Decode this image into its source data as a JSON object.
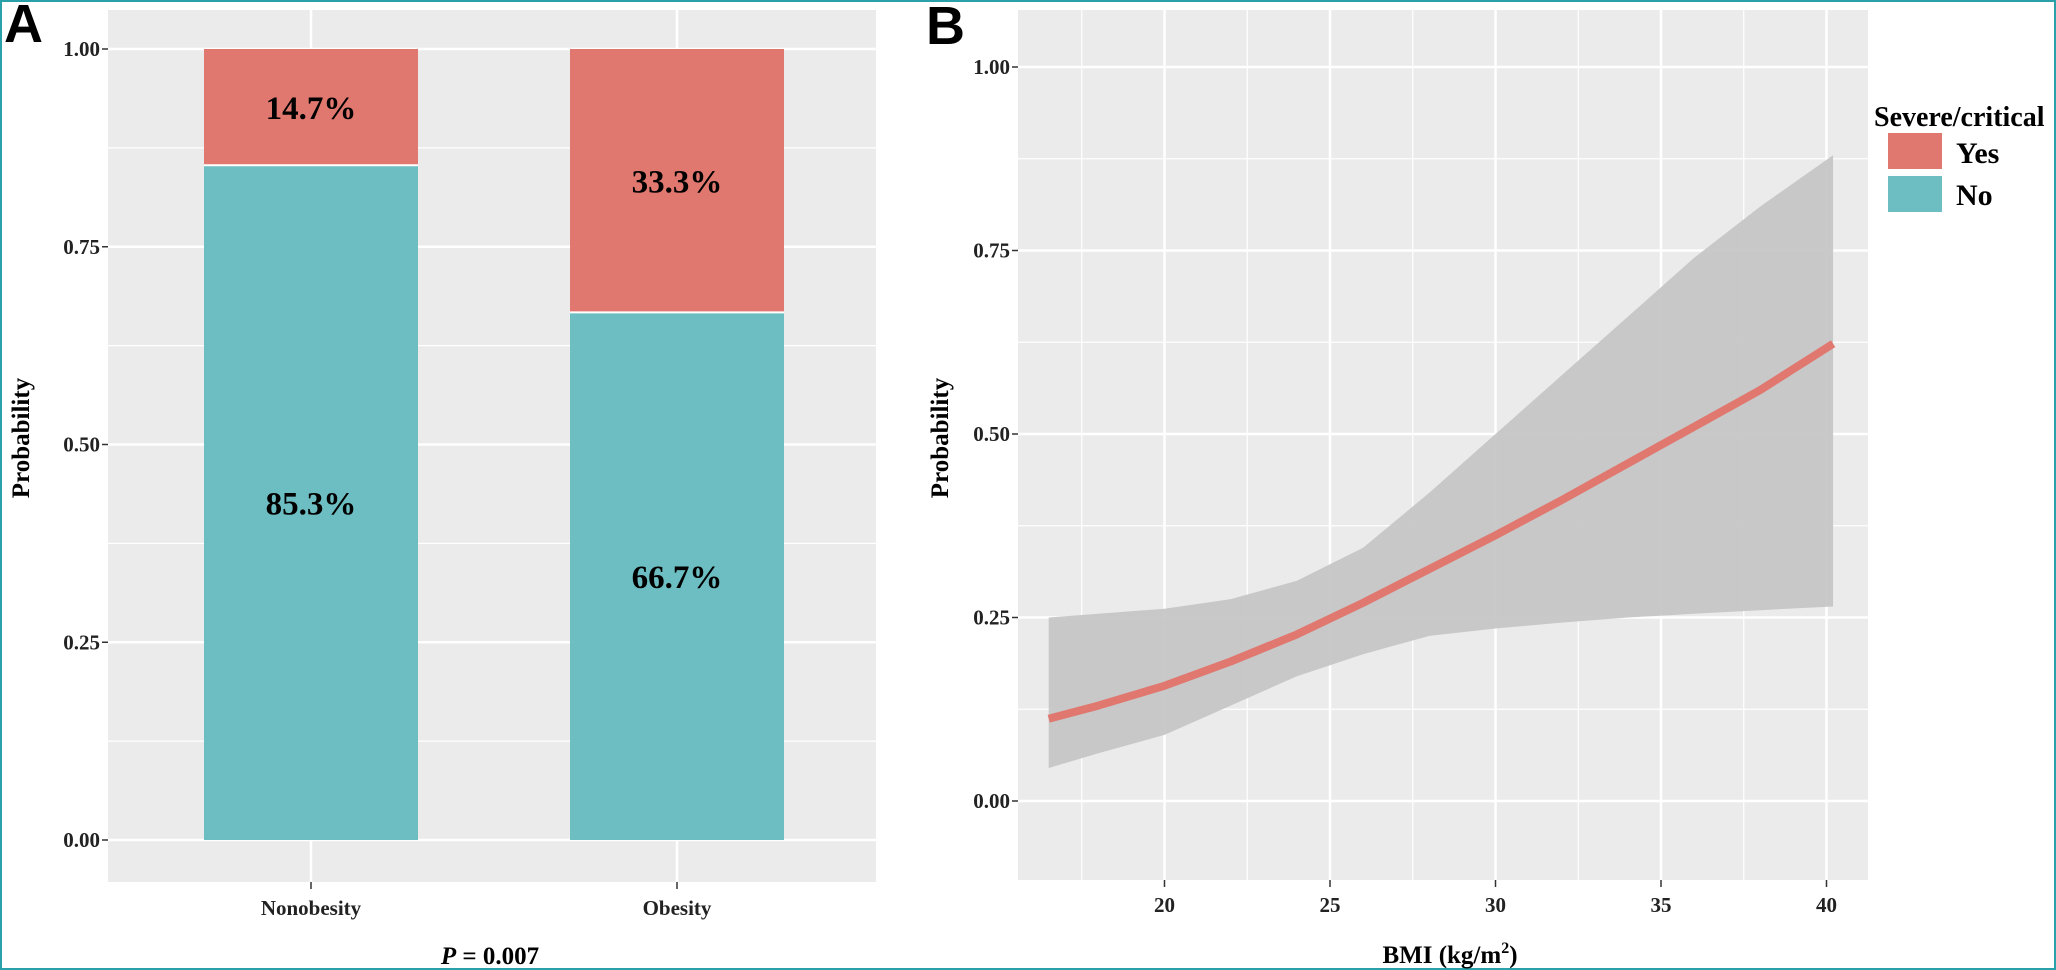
{
  "colors": {
    "yes": "#E07870",
    "no": "#6CBEC2",
    "panel_bg": "#EBEBEB",
    "grid": "#FFFFFF",
    "ribbon": "#C6C6C6"
  },
  "chart_data": [
    {
      "type": "bar",
      "panel_label": "A",
      "stacked": true,
      "categories": [
        "Nonobesity",
        "Obesity"
      ],
      "series": [
        {
          "name": "No",
          "values": [
            0.853,
            0.667
          ],
          "labels": [
            "85.3%",
            "66.7%"
          ]
        },
        {
          "name": "Yes",
          "values": [
            0.147,
            0.333
          ],
          "labels": [
            "14.7%",
            "33.3%"
          ]
        }
      ],
      "ylabel": "Probability",
      "xlabel_italic": "P",
      "xlabel_rest": " = 0.007",
      "ylim": [
        0,
        1
      ],
      "yticks": [
        "0.00",
        "0.25",
        "0.50",
        "0.75",
        "1.00"
      ],
      "grid": true
    },
    {
      "type": "line",
      "panel_label": "B",
      "series": [
        {
          "name": "Yes",
          "x": [
            16.5,
            18,
            20,
            22,
            24,
            26,
            28,
            30,
            32,
            34,
            36,
            38,
            40.2
          ],
          "y": [
            0.112,
            0.13,
            0.157,
            0.19,
            0.227,
            0.27,
            0.316,
            0.362,
            0.41,
            0.46,
            0.51,
            0.56,
            0.623
          ],
          "ci_low": [
            0.045,
            0.065,
            0.09,
            0.13,
            0.17,
            0.2,
            0.225,
            0.235,
            0.243,
            0.25,
            0.255,
            0.26,
            0.265
          ],
          "ci_high": [
            0.25,
            0.255,
            0.262,
            0.275,
            0.3,
            0.345,
            0.42,
            0.5,
            0.58,
            0.66,
            0.74,
            0.81,
            0.88
          ]
        }
      ],
      "xlabel_text": "BMI (kg/m",
      "xlabel_sup": "2",
      "xlabel_close": ")",
      "ylabel": "Probability",
      "xlim": [
        15.5,
        41.5
      ],
      "ylim": [
        -0.1,
        1.05
      ],
      "xticks": [
        "20",
        "25",
        "30",
        "35",
        "40"
      ],
      "yticks": [
        "0.00",
        "0.25",
        "0.50",
        "0.75",
        "1.00"
      ],
      "grid": true,
      "legend": {
        "title": "Severe/critical",
        "entries": [
          "Yes",
          "No"
        ],
        "position": "right"
      }
    }
  ]
}
